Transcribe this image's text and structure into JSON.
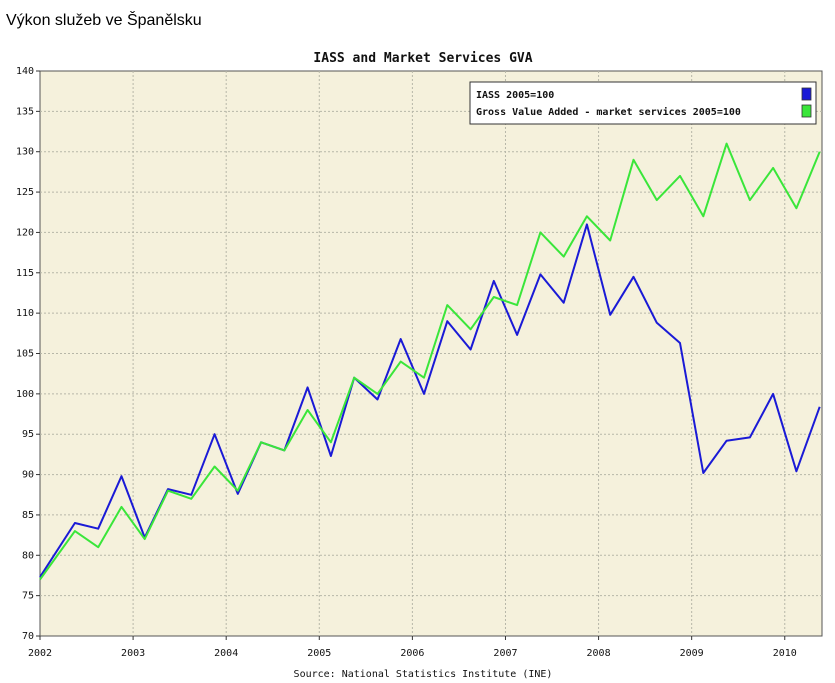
{
  "page": {
    "heading": "Výkon služeb ve Španělsku"
  },
  "chart_data": {
    "type": "line",
    "title": "IASS and Market Services GVA",
    "source": "Source: National Statistics Institute (INE)",
    "xlabel": "",
    "ylabel": "",
    "ylim": [
      70,
      140
    ],
    "xlim": [
      2002.0,
      2010.4
    ],
    "yticks": [
      70,
      75,
      80,
      85,
      90,
      95,
      100,
      105,
      110,
      115,
      120,
      125,
      130,
      135,
      140
    ],
    "xticks": [
      "2002",
      "2003",
      "2004",
      "2005",
      "2006",
      "2007",
      "2008",
      "2009",
      "2010"
    ],
    "grid": true,
    "legend_position": "top-right",
    "background": "#f5f1dc",
    "series": [
      {
        "name": "IASS 2005=100",
        "color": "#1a1ad6",
        "x": [
          2002.0,
          2002.375,
          2002.625,
          2002.875,
          2003.125,
          2003.375,
          2003.625,
          2003.875,
          2004.125,
          2004.375,
          2004.625,
          2004.875,
          2005.125,
          2005.375,
          2005.625,
          2005.875,
          2006.125,
          2006.375,
          2006.625,
          2006.875,
          2007.125,
          2007.375,
          2007.625,
          2007.875,
          2008.125,
          2008.375,
          2008.625,
          2008.875,
          2009.125,
          2009.375,
          2009.625,
          2009.875,
          2010.125,
          2010.375
        ],
        "values": [
          77.3,
          84.0,
          83.3,
          89.8,
          82.2,
          88.2,
          87.5,
          95.0,
          87.6,
          94.0,
          93.0,
          100.8,
          92.3,
          102.0,
          99.3,
          106.8,
          100.0,
          109.0,
          105.5,
          114.0,
          107.3,
          114.8,
          111.3,
          121.0,
          109.8,
          114.5,
          108.8,
          106.3,
          90.2,
          94.2,
          94.6,
          100.0,
          90.4,
          98.4
        ]
      },
      {
        "name": "Gross Value Added - market services 2005=100",
        "color": "#3ae63a",
        "x": [
          2002.0,
          2002.375,
          2002.625,
          2002.875,
          2003.125,
          2003.375,
          2003.625,
          2003.875,
          2004.125,
          2004.375,
          2004.625,
          2004.875,
          2005.125,
          2005.375,
          2005.625,
          2005.875,
          2006.125,
          2006.375,
          2006.625,
          2006.875,
          2007.125,
          2007.375,
          2007.625,
          2007.875,
          2008.125,
          2008.375,
          2008.625,
          2008.875,
          2009.125,
          2009.375,
          2009.625,
          2009.875,
          2010.125,
          2010.375
        ],
        "values": [
          77.0,
          83.0,
          81.0,
          86.0,
          82.0,
          88.0,
          87.0,
          91.0,
          88.0,
          94.0,
          93.0,
          98.0,
          94.0,
          102.0,
          100.0,
          104.0,
          102.0,
          111.0,
          108.0,
          112.0,
          111.0,
          120.0,
          117.0,
          122.0,
          119.0,
          129.0,
          124.0,
          127.0,
          122.0,
          131.0,
          124.0,
          128.0,
          123.0,
          130.0
        ]
      }
    ]
  }
}
